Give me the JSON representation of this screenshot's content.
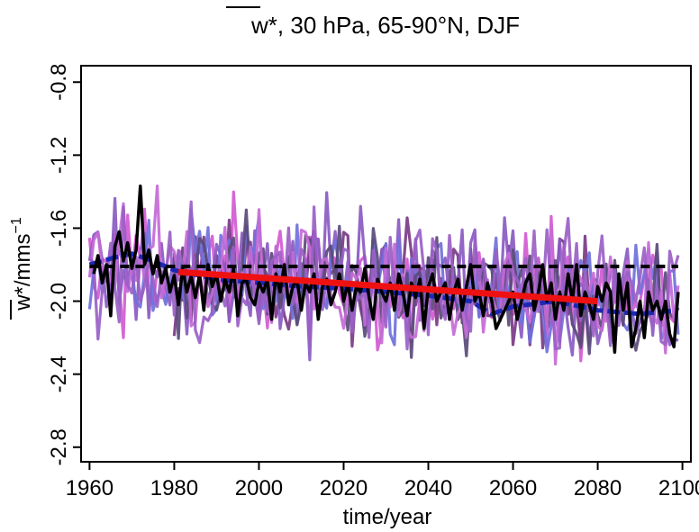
{
  "chart_data": {
    "type": "line",
    "title": {
      "symbol": "w*",
      "rest": ", 30 hPa, 65-90°N, DJF"
    },
    "xlabel": "time/year",
    "ylabel": {
      "symbol": "w*",
      "units": "/mms",
      "exponent": "−1"
    },
    "xlim": [
      1958,
      2102
    ],
    "ylim": [
      -2.88,
      -0.71
    ],
    "xticks": [
      1960,
      1980,
      2000,
      2020,
      2040,
      2060,
      2080,
      2100
    ],
    "yticks": [
      -0.8,
      -1.2,
      -1.6,
      -2.0,
      -2.4,
      -2.8
    ],
    "ytick_labels": [
      "-0.8",
      "-1.2",
      "-1.6",
      "-2.0",
      "-2.4",
      "-2.8"
    ],
    "grid": false,
    "colors": {
      "members": [
        "#d25ad2",
        "#7a3a86",
        "#8a5ac2",
        "#7070dc",
        "#5a4a7a",
        "#c46ad6",
        "#9a60c6"
      ],
      "smooth": "#1c28b4",
      "trend": "#ee1111",
      "reference": "#000000",
      "highlight": "#000000"
    },
    "series": [
      {
        "role": "ensemble-members",
        "note_count": 7,
        "start_year": 1960,
        "end_year": 2099,
        "mean_level": -1.95
      },
      {
        "role": "highlighted-member",
        "x": [
          1961,
          1962,
          1963,
          1964,
          1965,
          1966,
          1967,
          1968,
          1969,
          1970,
          1971,
          1972,
          1973,
          1974,
          1975,
          1976,
          1977,
          1978,
          1979,
          1980,
          1981,
          1982,
          1983,
          1984,
          1985,
          1986,
          1987,
          1988,
          1989,
          1990,
          1991,
          1992,
          1993,
          1994,
          1995,
          1996,
          1997,
          1998,
          1999,
          2000,
          2001,
          2002,
          2003,
          2004,
          2005,
          2006,
          2007,
          2008,
          2009,
          2010,
          2011,
          2012,
          2013,
          2014,
          2015,
          2016,
          2017,
          2018,
          2019,
          2020,
          2021,
          2022,
          2023,
          2024,
          2025,
          2026,
          2027,
          2028,
          2029,
          2030,
          2031,
          2032,
          2033,
          2034,
          2035,
          2036,
          2037,
          2038,
          2039,
          2040,
          2041,
          2042,
          2043,
          2044,
          2045,
          2046,
          2047,
          2048,
          2049,
          2050,
          2051,
          2052,
          2053,
          2054,
          2055,
          2056,
          2057,
          2058,
          2059,
          2060,
          2061,
          2062,
          2063,
          2064,
          2065,
          2066,
          2067,
          2068,
          2069,
          2070,
          2071,
          2072,
          2073,
          2074,
          2075,
          2076,
          2077,
          2078,
          2079,
          2080,
          2081,
          2082,
          2083,
          2084,
          2085,
          2086,
          2087,
          2088,
          2089,
          2090,
          2091,
          2092,
          2093,
          2094,
          2095,
          2096,
          2097,
          2098,
          2099
        ],
        "y": [
          -1.85,
          -1.75,
          -1.9,
          -1.8,
          -2.08,
          -1.7,
          -1.62,
          -1.78,
          -1.68,
          -1.82,
          -1.72,
          -1.37,
          -1.8,
          -1.72,
          -1.85,
          -1.75,
          -1.9,
          -1.82,
          -1.95,
          -1.86,
          -2.02,
          -1.82,
          -1.95,
          -1.86,
          -1.98,
          -1.85,
          -2.05,
          -1.8,
          -1.92,
          -1.85,
          -2.0,
          -1.88,
          -1.95,
          -1.82,
          -2.08,
          -1.9,
          -1.88,
          -1.98,
          -2.02,
          -1.9,
          -1.95,
          -1.88,
          -2.1,
          -1.85,
          -1.95,
          -1.8,
          -2.02,
          -1.92,
          -1.88,
          -2.05,
          -1.9,
          -1.95,
          -1.85,
          -2.1,
          -1.92,
          -1.88,
          -2.02,
          -1.95,
          -1.85,
          -2.0,
          -1.9,
          -2.05,
          -1.92,
          -1.95,
          -1.82,
          -1.98,
          -2.1,
          -1.88,
          -1.95,
          -2.0,
          -1.9,
          -2.05,
          -1.85,
          -1.95,
          -2.08,
          -1.9,
          -1.98,
          -1.88,
          -2.15,
          -1.92,
          -1.85,
          -2.0,
          -1.95,
          -1.9,
          -2.1,
          -1.95,
          -1.88,
          -2.05,
          -1.92,
          -1.8,
          -2.0,
          -1.95,
          -2.08,
          -1.9,
          -2.0,
          -2.15,
          -2.1,
          -2.05,
          -2.0,
          -1.95,
          -2.1,
          -2.0,
          -1.9,
          -1.85,
          -2.05,
          -1.95,
          -1.8,
          -2.0,
          -1.9,
          -2.1,
          -1.95,
          -2.05,
          -1.85,
          -2.0,
          -1.8,
          -2.08,
          -1.95,
          -2.02,
          -2.1,
          -1.92,
          -2.0,
          -1.9,
          -1.95,
          -2.28,
          -1.85,
          -2.05,
          -1.9,
          -2.25,
          -2.15,
          -2.0,
          -2.2,
          -1.95,
          -2.05,
          -2.0,
          -2.1,
          -2.0,
          -2.18,
          -2.25,
          -1.95
        ]
      },
      {
        "role": "smoothed-mean",
        "x": [
          1960,
          1966,
          1970,
          1975,
          1980,
          1990,
          2000,
          2010,
          2020,
          2030,
          2040,
          2050,
          2055,
          2060,
          2070,
          2080,
          2090,
          2099
        ],
        "y": [
          -1.8,
          -1.76,
          -1.74,
          -1.78,
          -1.83,
          -1.88,
          -1.9,
          -1.92,
          -1.93,
          -1.95,
          -1.97,
          -2.0,
          -2.07,
          -2.03,
          -2.0,
          -2.05,
          -2.07,
          -2.05
        ]
      },
      {
        "role": "linear-trend",
        "x": [
          1981,
          2080
        ],
        "y": [
          -1.84,
          -2.0
        ]
      },
      {
        "role": "reference-level",
        "x": [
          1960,
          2099
        ],
        "y": [
          -1.81,
          -1.81
        ]
      }
    ]
  }
}
